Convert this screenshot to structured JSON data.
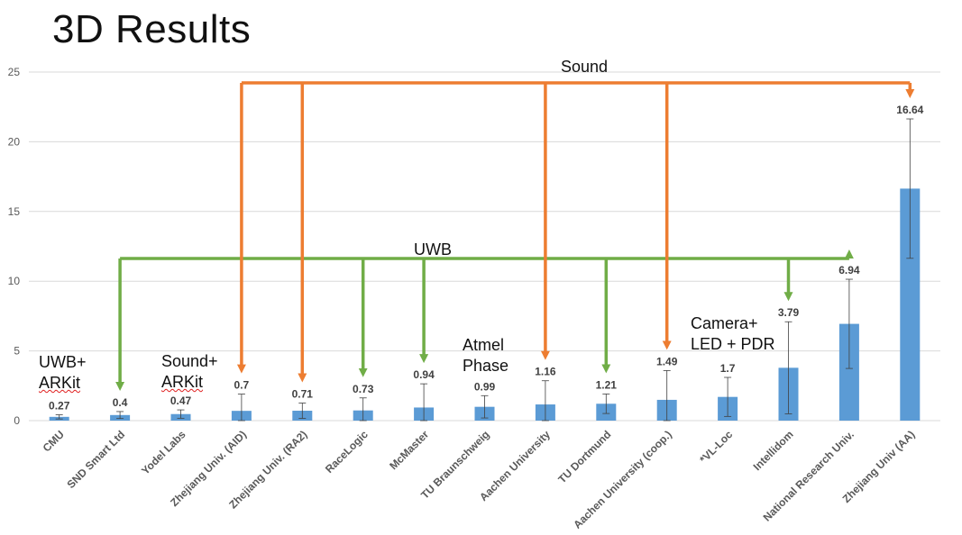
{
  "slide": {
    "title": "3D Results"
  },
  "chart_data": {
    "type": "bar",
    "categories": [
      "CMU",
      "SND Smart Ltd",
      "Yodel Labs",
      "Zhejiang Univ. (AID)",
      "Zhejiang Univ. (RA2)",
      "RaceLogic",
      "McMaster",
      "TU Braunschweig",
      "Aachen University",
      "TU Dortmund",
      "Aachen University (coop.)",
      "*VL-Loc",
      "Intellidom",
      "National Research Univ.",
      "Zhejiang Univ (AA)"
    ],
    "values": [
      0.27,
      0.4,
      0.47,
      0.7,
      0.71,
      0.73,
      0.94,
      0.99,
      1.16,
      1.21,
      1.49,
      1.7,
      3.79,
      6.94,
      16.64
    ],
    "data_labels": [
      "0.27",
      "0.4",
      "0.47",
      "0.7",
      "0.71",
      "0.73",
      "0.94",
      "0.99",
      "1.16",
      "1.21",
      "1.49",
      "1.7",
      "3.79",
      "6.94",
      "16.64"
    ],
    "error_bars": [
      0.15,
      0.25,
      0.3,
      1.2,
      0.55,
      0.9,
      1.7,
      0.8,
      1.7,
      0.7,
      2.1,
      1.4,
      3.3,
      3.2,
      5.0
    ],
    "ylim": [
      0,
      25
    ],
    "yticks": [
      "0",
      "5",
      "10",
      "15",
      "20",
      "25"
    ],
    "grid": true,
    "colors": {
      "bar": "#5B9BD5",
      "grid": "#D9D9D9",
      "sound": "#ED7D31",
      "uwb": "#70AD47",
      "error": "#404040"
    },
    "groups": {
      "sound": {
        "label": "Sound",
        "members": [
          3,
          4,
          8,
          10,
          14
        ]
      },
      "uwb": {
        "label": "UWB",
        "members": [
          1,
          5,
          6,
          9,
          12,
          13
        ]
      }
    },
    "annotations": [
      {
        "id": "uwb-arkit",
        "lines": [
          "UWB+",
          "ARKit"
        ]
      },
      {
        "id": "sound-arkit",
        "lines": [
          "Sound+",
          "ARKit"
        ]
      },
      {
        "id": "atmel-phase",
        "lines": [
          "Atmel",
          "Phase"
        ]
      },
      {
        "id": "camera-led-pdr",
        "lines": [
          "Camera+",
          "LED + PDR"
        ]
      }
    ]
  }
}
